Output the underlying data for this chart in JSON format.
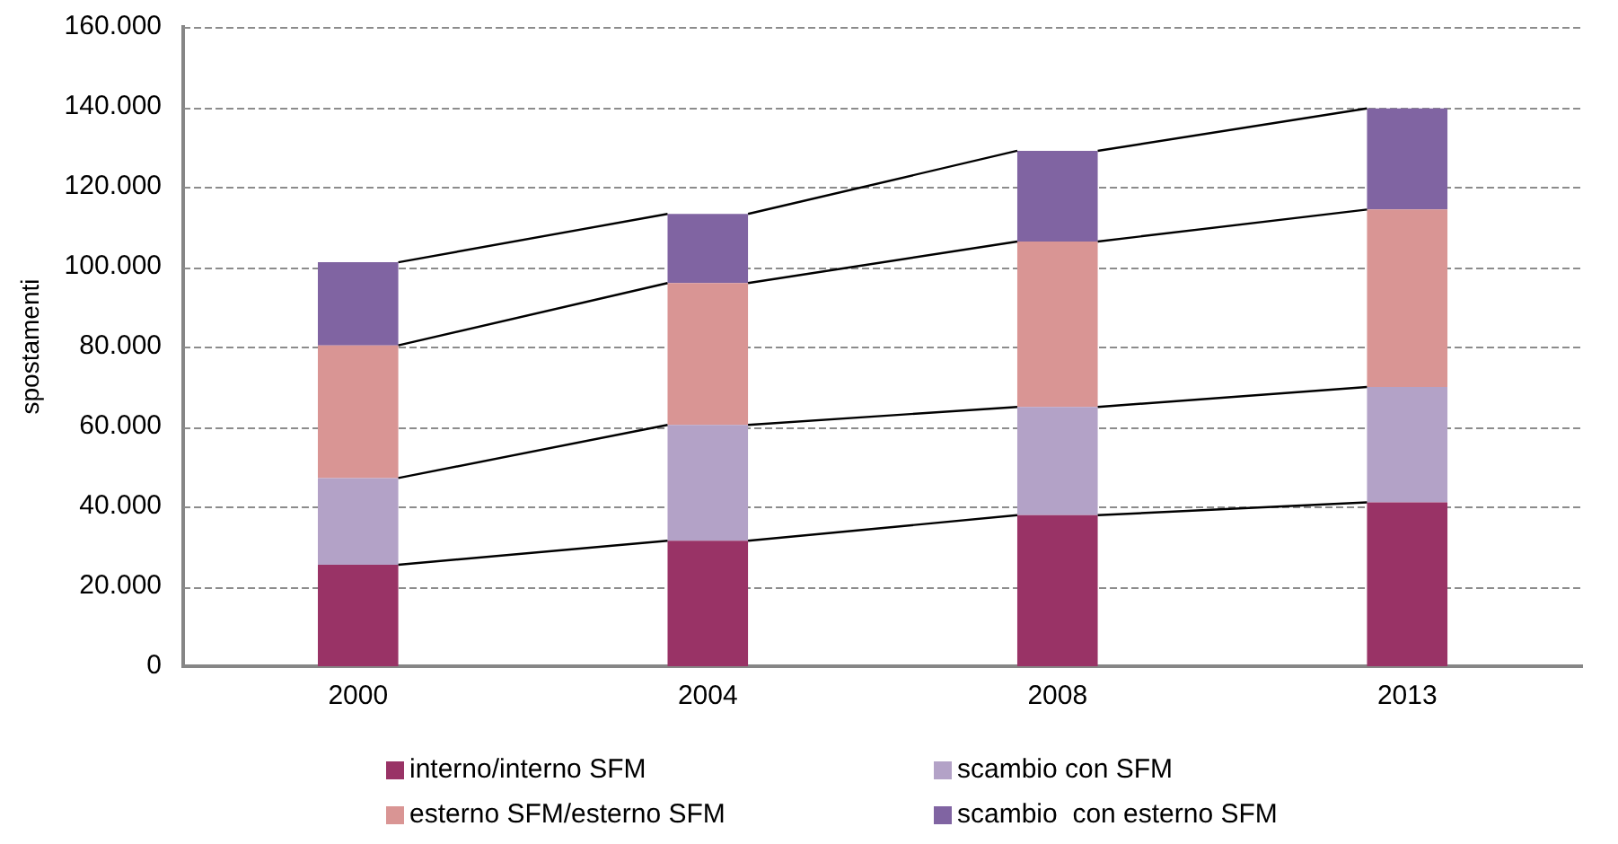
{
  "chart_data": {
    "type": "bar",
    "stacked": true,
    "ylabel": "spostamenti",
    "categories": [
      "2000",
      "2004",
      "2008",
      "2013"
    ],
    "series": [
      {
        "name": "interno/interno SFM",
        "color": "#993366",
        "values": [
          25400,
          31400,
          37800,
          41000
        ]
      },
      {
        "name": "scambio con SFM",
        "color": "#b3a2c7",
        "values": [
          21700,
          29000,
          27100,
          28900
        ]
      },
      {
        "name": "esterno SFM/esterno SFM",
        "color": "#d99594",
        "values": [
          33200,
          35500,
          41400,
          44400
        ]
      },
      {
        "name": "scambio  con esterno SFM",
        "color": "#8064a2",
        "values": [
          20800,
          17300,
          22700,
          25300
        ]
      }
    ],
    "ylim": [
      0,
      160000
    ],
    "yticks": [
      {
        "value": 0,
        "label": "0"
      },
      {
        "value": 20000,
        "label": "20.000"
      },
      {
        "value": 40000,
        "label": "40.000"
      },
      {
        "value": 60000,
        "label": "60.000"
      },
      {
        "value": 80000,
        "label": "80.000"
      },
      {
        "value": 100000,
        "label": "100.000"
      },
      {
        "value": 120000,
        "label": "120.000"
      },
      {
        "value": 140000,
        "label": "140.000"
      },
      {
        "value": 160000,
        "label": "160.000"
      }
    ],
    "grid": "y",
    "legend": "bottom"
  }
}
